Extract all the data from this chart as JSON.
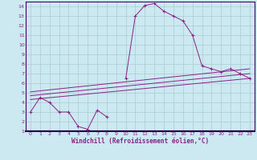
{
  "xlabel": "Windchill (Refroidissement éolien,°C)",
  "bg_color": "#cce8f0",
  "grid_color": "#aaccd4",
  "line_color": "#882288",
  "xlim": [
    -0.5,
    23.5
  ],
  "ylim": [
    1,
    14.5
  ],
  "xticks": [
    0,
    1,
    2,
    3,
    4,
    5,
    6,
    7,
    8,
    9,
    10,
    11,
    12,
    13,
    14,
    15,
    16,
    17,
    18,
    19,
    20,
    21,
    22,
    23
  ],
  "yticks": [
    1,
    2,
    3,
    4,
    5,
    6,
    7,
    8,
    9,
    10,
    11,
    12,
    13,
    14
  ],
  "series1_x": [
    0,
    1,
    2,
    3,
    4,
    5,
    6,
    7,
    8,
    9,
    10,
    11,
    12,
    13,
    14,
    15,
    16,
    17,
    18,
    19,
    20,
    21,
    22,
    23
  ],
  "series1_y": [
    3.0,
    4.5,
    4.0,
    3.0,
    3.0,
    1.5,
    1.2,
    3.2,
    2.5,
    null,
    6.5,
    13.0,
    14.1,
    14.3,
    13.5,
    13.0,
    12.5,
    11.0,
    7.8,
    7.5,
    7.2,
    7.5,
    7.0,
    6.5
  ],
  "series2_x": [
    0,
    23
  ],
  "series2_y": [
    4.3,
    6.5
  ],
  "series3_x": [
    0,
    23
  ],
  "series3_y": [
    4.7,
    7.0
  ],
  "series4_x": [
    0,
    23
  ],
  "series4_y": [
    5.1,
    7.5
  ],
  "tick_fontsize": 4.5,
  "label_fontsize": 5.5
}
